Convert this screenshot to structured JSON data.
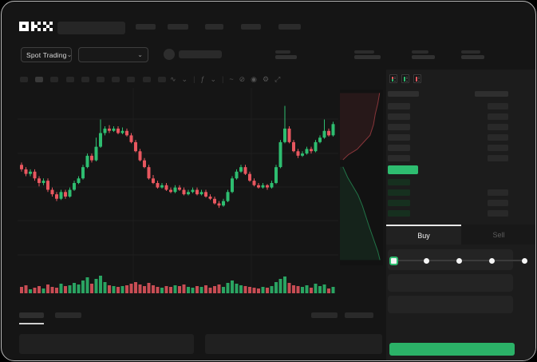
{
  "brand": {
    "logo_text": "OKX"
  },
  "icons": {
    "chevron_down": "⌄"
  },
  "header": {
    "market_type_selector": "Spot Trading",
    "nav_placeholder_count": 5,
    "stat_placeholder_count": 4
  },
  "chart_toolbar": {
    "timeframe_count": 10,
    "tools": [
      {
        "name": "candle-style-icon",
        "glyph": "∿"
      },
      {
        "name": "candle-style-chevron-icon",
        "glyph": "⌄"
      },
      {
        "name": "divider",
        "glyph": "|"
      },
      {
        "name": "indicators-icon",
        "glyph": "ƒ"
      },
      {
        "name": "indicators-chevron-icon",
        "glyph": "⌄"
      },
      {
        "name": "divider",
        "glyph": "|"
      },
      {
        "name": "line-style-icon",
        "glyph": "~"
      },
      {
        "name": "compare-icon",
        "glyph": "⊘"
      },
      {
        "name": "snapshot-icon",
        "glyph": "◉"
      },
      {
        "name": "settings-icon",
        "glyph": "⚙"
      },
      {
        "name": "fullscreen-icon",
        "glyph": "⤢"
      }
    ]
  },
  "orderbook": {
    "view_modes": [
      "combined-book",
      "bids-book",
      "asks-book"
    ],
    "ask_rows": 6,
    "bid_rows": 4,
    "bid_size_flags": [
      false,
      true,
      true,
      true
    ]
  },
  "trade_panel": {
    "tabs": [
      {
        "label": "Buy",
        "active": true
      },
      {
        "label": "Sell",
        "active": false
      }
    ],
    "input_rows": 3,
    "slider": {
      "stops": 5,
      "active_stop": 0
    }
  },
  "chart_data": [
    {
      "type": "candlestick",
      "title": "",
      "xlabel": "",
      "ylabel": "",
      "price_range": [
        30,
        85
      ],
      "grid": true,
      "candles": [
        [
          56,
          57,
          53,
          54
        ],
        [
          54,
          55,
          51,
          52
        ],
        [
          52,
          54,
          51,
          53
        ],
        [
          53,
          54,
          49,
          50
        ],
        [
          50,
          51,
          46.5,
          48
        ],
        [
          48,
          50,
          47,
          49
        ],
        [
          49,
          50,
          44,
          45
        ],
        [
          45,
          46,
          42,
          43
        ],
        [
          43,
          44,
          40,
          41
        ],
        [
          41,
          45,
          40.5,
          44
        ],
        [
          44,
          45,
          41,
          42
        ],
        [
          42,
          46,
          41.5,
          45
        ],
        [
          45,
          49,
          44.5,
          48
        ],
        [
          48,
          51,
          47.5,
          50
        ],
        [
          50,
          56,
          49.5,
          55
        ],
        [
          55,
          61,
          54.5,
          60
        ],
        [
          60,
          61,
          57,
          58
        ],
        [
          58,
          68,
          57.5,
          64
        ],
        [
          64,
          76,
          63.5,
          70
        ],
        [
          70,
          73,
          69,
          72
        ],
        [
          72,
          73.5,
          70,
          71
        ],
        [
          71,
          73,
          70.5,
          72
        ],
        [
          72,
          73,
          69.5,
          70
        ],
        [
          70,
          72.5,
          69.5,
          71
        ],
        [
          71,
          72,
          68.5,
          69
        ],
        [
          69,
          70,
          65.5,
          66
        ],
        [
          66,
          67,
          61.5,
          62
        ],
        [
          62,
          63,
          57.5,
          58
        ],
        [
          58,
          59,
          54.5,
          55
        ],
        [
          55,
          56,
          49.5,
          50
        ],
        [
          50,
          51.5,
          47.5,
          48
        ],
        [
          48,
          49,
          45.5,
          46
        ],
        [
          46,
          48,
          45.5,
          47
        ],
        [
          47,
          48,
          44.5,
          45
        ],
        [
          45,
          46,
          43.5,
          44
        ],
        [
          44,
          47,
          43.5,
          46
        ],
        [
          46,
          47,
          44.5,
          45
        ],
        [
          45,
          46,
          42.5,
          43
        ],
        [
          43,
          45,
          42.5,
          44
        ],
        [
          44,
          46,
          43.5,
          45
        ],
        [
          45,
          46,
          42.5,
          43
        ],
        [
          43,
          45,
          42.5,
          44
        ],
        [
          44,
          45,
          41.5,
          42
        ],
        [
          42,
          43,
          40.5,
          41
        ],
        [
          41,
          42,
          38.5,
          39
        ],
        [
          39,
          40,
          37,
          38
        ],
        [
          38,
          41,
          37.5,
          40
        ],
        [
          40,
          45,
          39.5,
          44
        ],
        [
          44,
          51,
          43.5,
          50
        ],
        [
          50,
          54,
          49.5,
          53
        ],
        [
          53,
          56,
          52.5,
          55
        ],
        [
          55,
          56,
          51.5,
          52
        ],
        [
          52,
          53,
          48.5,
          49
        ],
        [
          49,
          50,
          46.5,
          47
        ],
        [
          47,
          48,
          45.5,
          46
        ],
        [
          46,
          48,
          45.5,
          47
        ],
        [
          47,
          47.5,
          45,
          46
        ],
        [
          46,
          49,
          45.5,
          48
        ],
        [
          48,
          56,
          47.5,
          55
        ],
        [
          55,
          67,
          54.5,
          66
        ],
        [
          66,
          82,
          65.5,
          72
        ],
        [
          72,
          73,
          65.5,
          66
        ],
        [
          66,
          67,
          61.5,
          62
        ],
        [
          62,
          63,
          59,
          60
        ],
        [
          60,
          62,
          59.5,
          61
        ],
        [
          61,
          64,
          60.5,
          63
        ],
        [
          63,
          64,
          61,
          62
        ],
        [
          62,
          67,
          61.5,
          66
        ],
        [
          66,
          69,
          65.5,
          68
        ],
        [
          68,
          76,
          67.5,
          71
        ],
        [
          71,
          72,
          68.5,
          69
        ],
        [
          69,
          75,
          68.5,
          74
        ]
      ],
      "volumes": [
        8,
        10,
        5,
        7,
        9,
        6,
        11,
        8,
        7,
        12,
        9,
        10,
        13,
        11,
        16,
        20,
        12,
        18,
        22,
        14,
        10,
        9,
        8,
        9,
        10,
        12,
        14,
        11,
        9,
        13,
        10,
        8,
        7,
        9,
        8,
        10,
        9,
        11,
        8,
        7,
        9,
        8,
        10,
        7,
        9,
        11,
        8,
        13,
        16,
        12,
        10,
        9,
        8,
        7,
        6,
        8,
        7,
        9,
        14,
        18,
        21,
        13,
        10,
        9,
        8,
        10,
        7,
        12,
        9,
        11,
        6,
        8
      ]
    },
    {
      "type": "depth",
      "orientation": "vertical",
      "asks_curve": [
        [
          0.92,
          0.02
        ],
        [
          0.88,
          0.08
        ],
        [
          0.82,
          0.14
        ],
        [
          0.78,
          0.2
        ],
        [
          0.7,
          0.26
        ],
        [
          0.55,
          0.3
        ],
        [
          0.4,
          0.34
        ],
        [
          0.2,
          0.37
        ],
        [
          0.07,
          0.4
        ]
      ],
      "bids_curve": [
        [
          0.07,
          0.44
        ],
        [
          0.18,
          0.5
        ],
        [
          0.3,
          0.55
        ],
        [
          0.42,
          0.6
        ],
        [
          0.52,
          0.66
        ],
        [
          0.6,
          0.72
        ],
        [
          0.68,
          0.78
        ],
        [
          0.78,
          0.85
        ],
        [
          0.88,
          0.92
        ],
        [
          0.93,
          0.97
        ]
      ]
    }
  ],
  "colors": {
    "green": "#2ebd70",
    "red": "#e8575f",
    "buy_button": "#2bb167",
    "price_flag": "#2ebd70",
    "depth_ask_fill": "rgba(224,80,88,0.10)",
    "depth_ask_line": "rgba(224,80,88,0.55)",
    "depth_bid_fill": "rgba(46,189,112,0.10)",
    "depth_bid_line": "rgba(46,189,112,0.55)"
  }
}
